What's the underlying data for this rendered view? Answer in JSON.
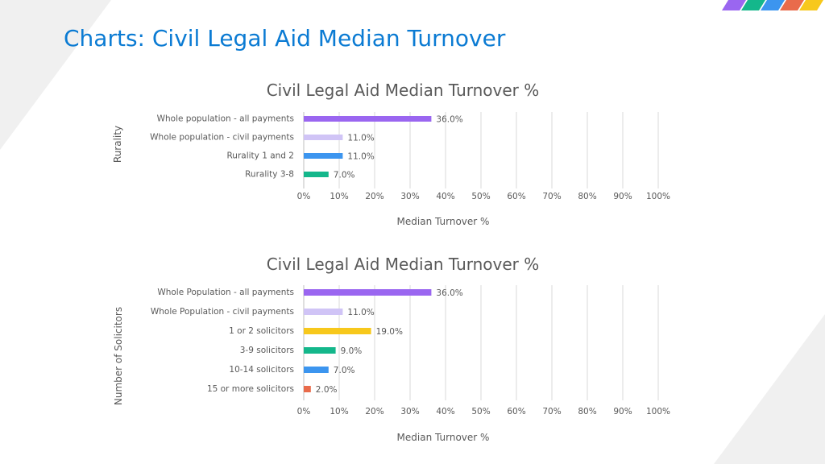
{
  "page": {
    "title": "Charts: Civil Legal Aid Median Turnover"
  },
  "colors": {
    "title": "#0b7bd3",
    "purple": "#9a66f0",
    "lavender": "#d0c4f6",
    "blue": "#3c95ef",
    "green": "#14b78b",
    "yellow": "#f7c81c",
    "orange": "#e96b4b",
    "grid": "#d9d9d9",
    "text": "#595959"
  },
  "chart_data": [
    {
      "type": "bar",
      "orientation": "horizontal",
      "title": "Civil Legal Aid Median Turnover %",
      "xlabel": "Median Turnover %",
      "ylabel": "Rurality",
      "xlim": [
        0,
        100
      ],
      "xticks": [
        "0%",
        "10%",
        "20%",
        "30%",
        "40%",
        "50%",
        "60%",
        "70%",
        "80%",
        "90%",
        "100%"
      ],
      "grid": "vertical",
      "categories": [
        "Whole population - all payments",
        "Whole population - civil payments",
        "Rurality 1 and 2",
        "Rurality 3-8"
      ],
      "values": [
        36.0,
        11.0,
        11.0,
        7.0
      ],
      "value_labels": [
        "36.0%",
        "11.0%",
        "11.0%",
        "7.0%"
      ],
      "bar_colors": [
        "#9a66f0",
        "#d0c4f6",
        "#3c95ef",
        "#14b78b"
      ]
    },
    {
      "type": "bar",
      "orientation": "horizontal",
      "title": "Civil Legal Aid Median Turnover %",
      "xlabel": "Median Turnover %",
      "ylabel": "Number of Solicitors",
      "xlim": [
        0,
        100
      ],
      "xticks": [
        "0%",
        "10%",
        "20%",
        "30%",
        "40%",
        "50%",
        "60%",
        "70%",
        "80%",
        "90%",
        "100%"
      ],
      "grid": "vertical",
      "categories": [
        "Whole Population - all payments",
        "Whole Population - civil payments",
        "1 or 2 solicitors",
        "3-9 solicitors",
        "10-14 solicitors",
        "15 or more solicitors"
      ],
      "values": [
        36.0,
        11.0,
        19.0,
        9.0,
        7.0,
        2.0
      ],
      "value_labels": [
        "36.0%",
        "11.0%",
        "19.0%",
        "9.0%",
        "7.0%",
        "2.0%"
      ],
      "bar_colors": [
        "#9a66f0",
        "#d0c4f6",
        "#f7c81c",
        "#14b78b",
        "#3c95ef",
        "#e96b4b"
      ]
    }
  ]
}
